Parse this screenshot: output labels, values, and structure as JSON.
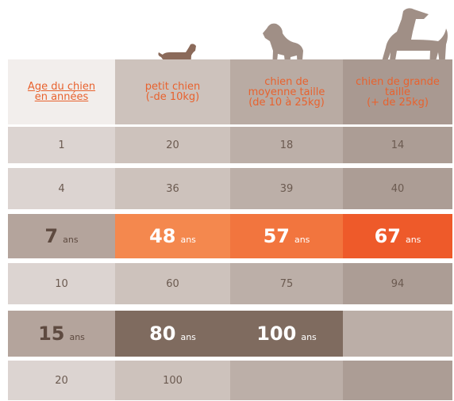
{
  "table": {
    "header": [
      [
        "Age du chien",
        "en années"
      ],
      [
        "petit chien",
        "(-de 10kg)"
      ],
      [
        "chien de",
        "moyenne taille",
        "(de 10 à 25kg)"
      ],
      [
        "chien de grande",
        "taille",
        "(+ de 25kg)"
      ]
    ],
    "rows": [
      [
        1,
        20,
        18,
        14
      ],
      [
        4,
        36,
        39,
        40
      ],
      [
        {
          "value": 7,
          "unit": "ans"
        },
        {
          "value": 48,
          "unit": "ans"
        },
        {
          "value": 57,
          "unit": "ans"
        },
        {
          "value": 67,
          "unit": "ans"
        }
      ],
      [
        10,
        60,
        75,
        94
      ],
      [
        {
          "value": 15,
          "unit": "ans"
        },
        {
          "value": 80,
          "unit": "ans"
        },
        {
          "value": 100,
          "unit": "ans"
        }
      ],
      [
        20,
        100
      ]
    ]
  }
}
